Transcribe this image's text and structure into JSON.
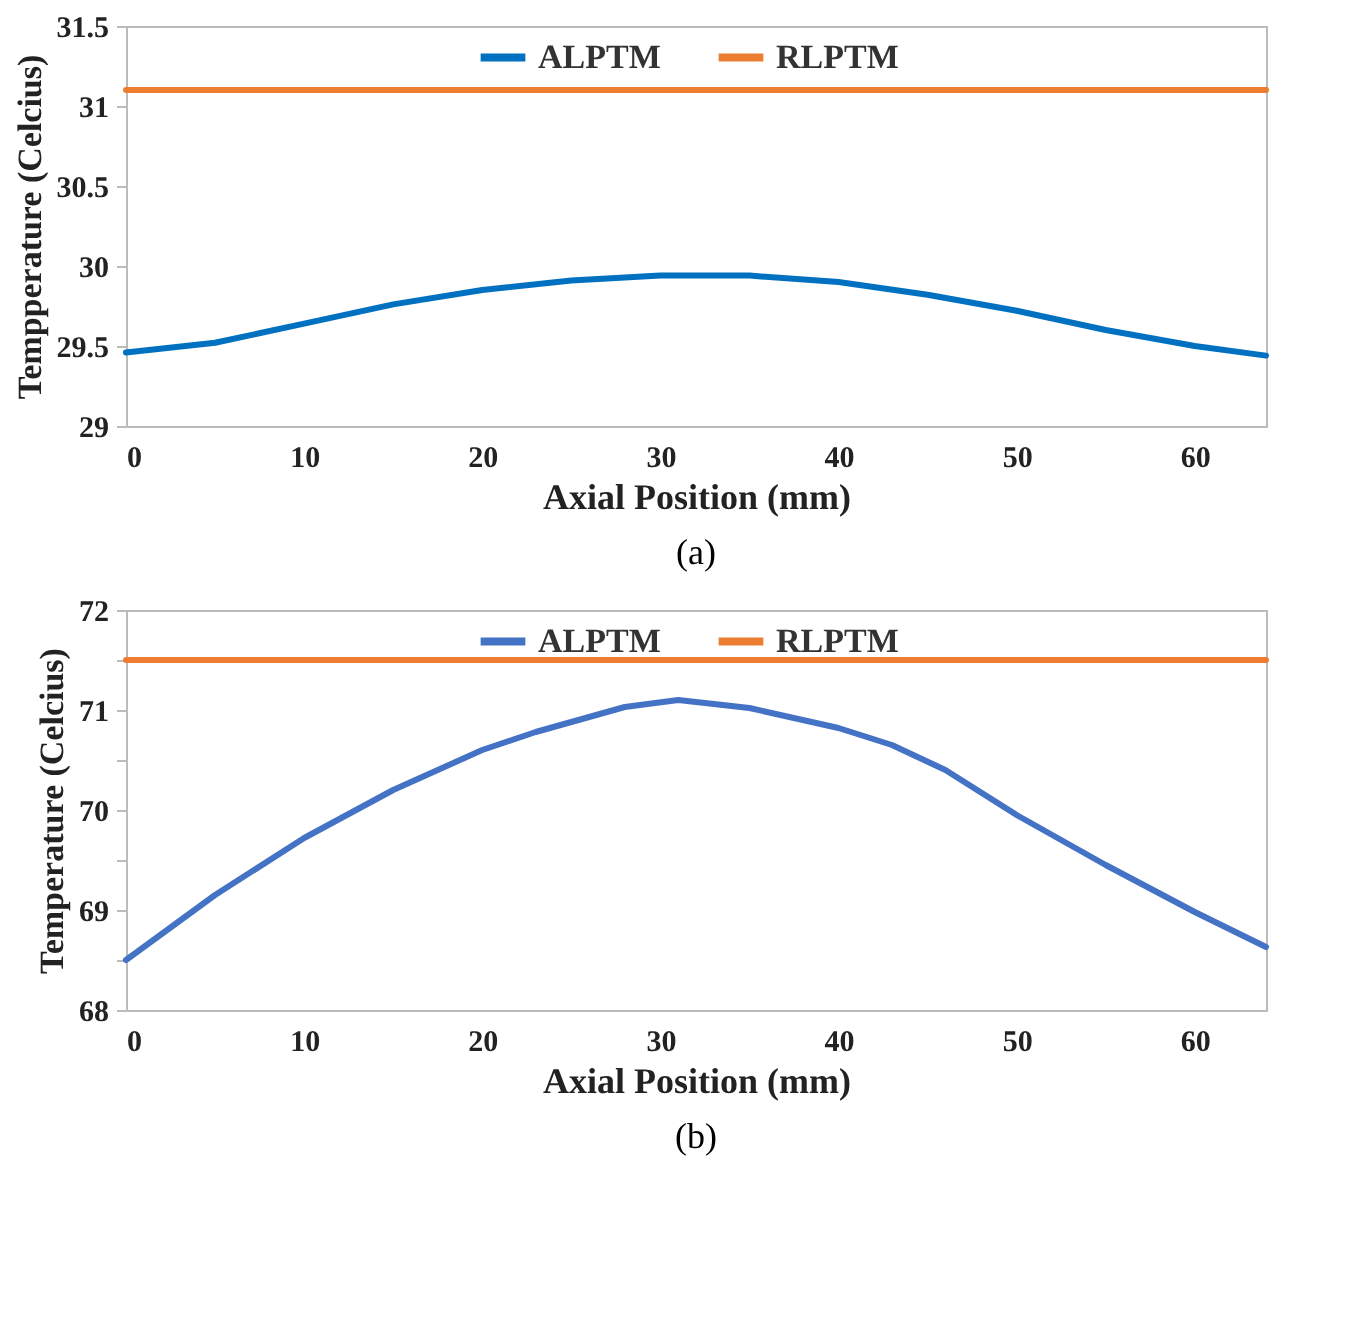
{
  "chart_data": [
    {
      "type": "line",
      "xlabel": "Axial Position (mm)",
      "ylabel": "Tempperature (Celcius)",
      "annotations": [
        "(a)"
      ],
      "xlim": [
        0,
        64
      ],
      "xticks": [
        0,
        10,
        20,
        30,
        40,
        50,
        60
      ],
      "ylim": [
        29,
        31.5
      ],
      "yticks": [
        29,
        29.5,
        30,
        30.5,
        31,
        31.5
      ],
      "grid": false,
      "legend": "top",
      "line_style": "solid",
      "marker": "none",
      "series": [
        {
          "name": "ALPTM",
          "color": "#0070c0",
          "x": [
            0,
            5,
            10,
            15,
            20,
            25,
            30,
            35,
            40,
            45,
            50,
            55,
            60,
            64
          ],
          "values": [
            29.46,
            29.52,
            29.64,
            29.76,
            29.85,
            29.91,
            29.94,
            29.94,
            29.9,
            29.82,
            29.72,
            29.6,
            29.5,
            29.44
          ]
        },
        {
          "name": "RLPTM",
          "color": "#ed7d31",
          "x": [
            0,
            64
          ],
          "values": [
            31.1,
            31.1
          ]
        }
      ]
    },
    {
      "type": "line",
      "xlabel": "Axial Position (mm)",
      "ylabel": "Temperature (Celcius)",
      "annotations": [
        "(b)"
      ],
      "xlim": [
        0,
        64
      ],
      "xticks": [
        0,
        10,
        20,
        30,
        40,
        50,
        60
      ],
      "ylim": [
        68,
        72
      ],
      "yticks": [
        68,
        {
          "value": 68.5,
          "label": null
        },
        69,
        {
          "value": 69.5,
          "label": null
        },
        70,
        {
          "value": 70.5,
          "label": null
        },
        71,
        {
          "value": 71.5,
          "label": null
        },
        72
      ],
      "grid": false,
      "legend": "top",
      "line_style": "solid",
      "marker": "none",
      "series": [
        {
          "name": "ALPTM",
          "color": "#4472c4",
          "x": [
            0,
            5,
            10,
            15,
            20,
            23,
            25,
            28,
            31,
            35,
            40,
            43,
            46,
            50,
            55,
            60,
            64
          ],
          "values": [
            68.5,
            69.15,
            69.72,
            70.2,
            70.6,
            70.78,
            70.88,
            71.03,
            71.1,
            71.02,
            70.82,
            70.65,
            70.4,
            69.95,
            69.45,
            68.98,
            68.63
          ]
        },
        {
          "name": "RLPTM",
          "color": "#ed7d31",
          "x": [
            0,
            64
          ],
          "values": [
            71.5,
            71.5
          ]
        }
      ]
    }
  ]
}
